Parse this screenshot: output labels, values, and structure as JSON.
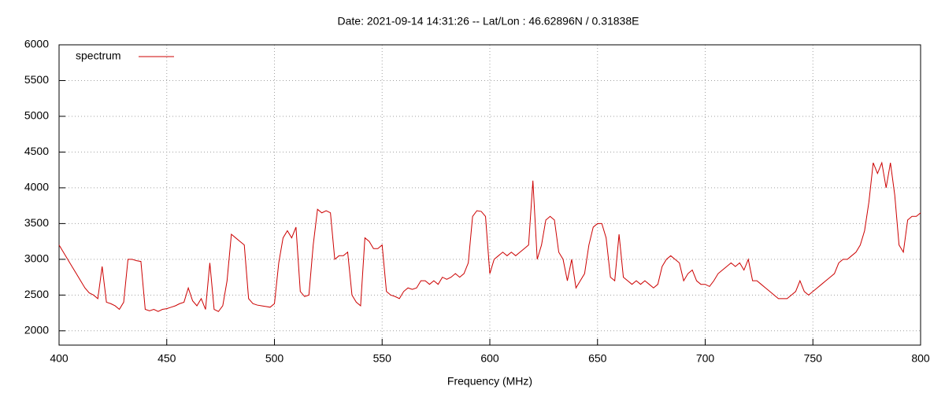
{
  "chart_data": {
    "type": "line",
    "title": "Date: 2021-09-14 14:31:26  --  Lat/Lon : 46.62896N / 0.31838E",
    "x_label": "Frequency (MHz)",
    "x": [
      400,
      402,
      404,
      406,
      408,
      410,
      412,
      414,
      416,
      418,
      420,
      422,
      424,
      426,
      428,
      430,
      432,
      434,
      436,
      438,
      440,
      442,
      444,
      446,
      448,
      450,
      452,
      454,
      456,
      458,
      460,
      462,
      464,
      466,
      468,
      470,
      472,
      474,
      476,
      478,
      480,
      482,
      484,
      486,
      488,
      490,
      492,
      494,
      496,
      498,
      500,
      502,
      504,
      506,
      508,
      510,
      512,
      514,
      516,
      518,
      520,
      522,
      524,
      526,
      528,
      530,
      532,
      534,
      536,
      538,
      540,
      542,
      544,
      546,
      548,
      550,
      552,
      554,
      556,
      558,
      560,
      562,
      564,
      566,
      568,
      570,
      572,
      574,
      576,
      578,
      580,
      582,
      584,
      586,
      588,
      590,
      592,
      594,
      596,
      598,
      600,
      602,
      604,
      606,
      608,
      610,
      612,
      614,
      616,
      618,
      620,
      622,
      624,
      626,
      628,
      630,
      632,
      634,
      636,
      638,
      640,
      642,
      644,
      646,
      648,
      650,
      652,
      654,
      656,
      658,
      660,
      662,
      664,
      666,
      668,
      670,
      672,
      674,
      676,
      678,
      680,
      682,
      684,
      686,
      688,
      690,
      692,
      694,
      696,
      698,
      700,
      702,
      704,
      706,
      708,
      710,
      712,
      714,
      716,
      718,
      720,
      722,
      724,
      726,
      728,
      730,
      732,
      734,
      736,
      738,
      740,
      742,
      744,
      746,
      748,
      750,
      752,
      754,
      756,
      758,
      760,
      762,
      764,
      766,
      768,
      770,
      772,
      774,
      776,
      778,
      780,
      782,
      784,
      786,
      788,
      790,
      792,
      794,
      796,
      798,
      800
    ],
    "series": [
      {
        "name": "spectrum",
        "color": "#cc0000",
        "values": [
          3200,
          3100,
          3000,
          2900,
          2800,
          2700,
          2600,
          2530,
          2500,
          2450,
          2900,
          2400,
          2380,
          2350,
          2300,
          2400,
          3000,
          3000,
          2980,
          2970,
          2300,
          2280,
          2300,
          2270,
          2300,
          2310,
          2330,
          2350,
          2380,
          2400,
          2600,
          2420,
          2350,
          2450,
          2300,
          2950,
          2300,
          2270,
          2350,
          2700,
          3350,
          3300,
          3250,
          3200,
          2450,
          2380,
          2360,
          2350,
          2340,
          2330,
          2380,
          2950,
          3300,
          3400,
          3300,
          3450,
          2550,
          2480,
          2500,
          3200,
          3700,
          3650,
          3680,
          3650,
          3000,
          3050,
          3050,
          3100,
          2500,
          2400,
          2350,
          3300,
          3250,
          3150,
          3150,
          3200,
          2550,
          2500,
          2480,
          2450,
          2550,
          2600,
          2580,
          2600,
          2700,
          2700,
          2650,
          2700,
          2650,
          2750,
          2720,
          2750,
          2800,
          2750,
          2800,
          2950,
          3600,
          3680,
          3670,
          3600,
          2800,
          3000,
          3050,
          3100,
          3050,
          3100,
          3050,
          3100,
          3150,
          3200,
          4100,
          3000,
          3200,
          3550,
          3600,
          3550,
          3100,
          3000,
          2700,
          3000,
          2600,
          2700,
          2800,
          3200,
          3450,
          3500,
          3500,
          3300,
          2750,
          2700,
          3350,
          2750,
          2700,
          2650,
          2700,
          2650,
          2700,
          2650,
          2600,
          2650,
          2900,
          3000,
          3050,
          3000,
          2950,
          2700,
          2800,
          2850,
          2700,
          2650,
          2650,
          2620,
          2700,
          2800,
          2850,
          2900,
          2950,
          2900,
          2950,
          2850,
          3000,
          2700,
          2700,
          2650,
          2600,
          2550,
          2500,
          2450,
          2450,
          2450,
          2500,
          2550,
          2700,
          2550,
          2500,
          2550,
          2600,
          2650,
          2700,
          2750,
          2800,
          2950,
          3000,
          3000,
          3050,
          3100,
          3200,
          3400,
          3800,
          4350,
          4200,
          4350,
          4000,
          4350,
          3900,
          3200,
          3100,
          3550,
          3600,
          3600,
          3650
        ]
      }
    ],
    "xlim": [
      400,
      800
    ],
    "xticks": [
      400,
      450,
      500,
      550,
      600,
      650,
      700,
      750,
      800
    ],
    "ylim": [
      1800,
      6000
    ],
    "yticks": [
      2000,
      2500,
      3000,
      3500,
      4000,
      4500,
      5000,
      5500,
      6000
    ],
    "grid": true,
    "legend": "top-left"
  }
}
